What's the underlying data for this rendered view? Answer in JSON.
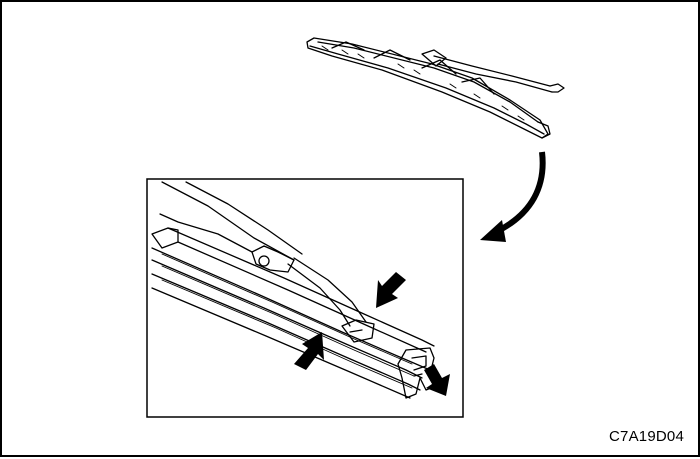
{
  "figure": {
    "code": "C7A19D04",
    "ink_color": "#000000",
    "background_color": "#ffffff"
  },
  "icons": {
    "overview": "wiper-blade-assembly-icon",
    "detail": "wiper-blade-end-detail-icon",
    "callout_arrow": "curved-arrow-icon",
    "press_arrows": "push-arrow-icon",
    "pull_arrow": "pull-out-arrow-icon"
  }
}
